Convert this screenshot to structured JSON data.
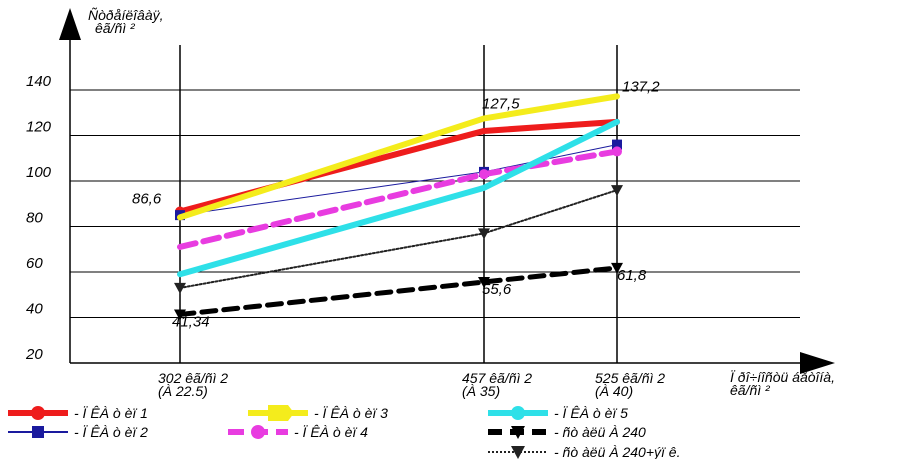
{
  "chart_data": {
    "type": "line",
    "ylabel": [
      "Ñòðåíëîâàÿ,",
      "êã/ñì ²"
    ],
    "xlabel": [
      "Ï ðî÷íîñòü áåòîíà,",
      "êã/ñì ²"
    ],
    "ylim": [
      20,
      140
    ],
    "yticks": [
      20,
      40,
      60,
      80,
      100,
      120,
      140
    ],
    "categories": [
      [
        "302 êã/ñì 2",
        "(À 22.5)"
      ],
      [
        "457 êã/ñì 2",
        "(À 35)"
      ],
      [
        "525 êã/ñì 2",
        "(À 40)"
      ]
    ],
    "series": [
      {
        "name": "- Ï ÊÀ ò èï 1",
        "color": "#ee1c1c",
        "dash": "",
        "marker": "circle",
        "values": [
          86.6,
          122,
          126
        ]
      },
      {
        "name": "- Ï ÊÀ ò èï 2",
        "color": "#1a1a9e",
        "dash": "",
        "marker": "square",
        "values": [
          85,
          104,
          116
        ]
      },
      {
        "name": "- Ï ÊÀ ò èï 3",
        "color": "#f4ec1c",
        "dash": "",
        "marker": "arrow",
        "values": [
          84,
          127.5,
          137.2
        ]
      },
      {
        "name": "- Ï ÊÀ ò èï 4",
        "color": "#e83ce0",
        "dash": "16 8",
        "marker": "circle",
        "values": [
          71,
          103,
          113
        ]
      },
      {
        "name": "- Ï ÊÀ ò èï 5",
        "color": "#2ee0e8",
        "dash": "",
        "marker": "circle",
        "values": [
          59,
          97,
          126
        ]
      },
      {
        "name": "- ñò àëü À 240",
        "color": "#000000",
        "dash": "14 8",
        "marker": "triangle",
        "values": [
          41.34,
          55.6,
          61.8
        ]
      },
      {
        "name": "- ñò àëü À 240+ýï ê.",
        "color": "#222222",
        "dash": "2 2",
        "marker": "triangle",
        "values": [
          53,
          77,
          96
        ]
      }
    ],
    "annotations": [
      {
        "text": "86,6",
        "series": 0,
        "point": 0
      },
      {
        "text": "127,5",
        "series": 2,
        "point": 1
      },
      {
        "text": "137,2",
        "series": 2,
        "point": 2
      },
      {
        "text": "41,34",
        "series": 5,
        "point": 0
      },
      {
        "text": "55,6",
        "series": 5,
        "point": 1
      },
      {
        "text": "61,8",
        "series": 5,
        "point": 2
      }
    ],
    "legend_position": "bottom-left"
  }
}
